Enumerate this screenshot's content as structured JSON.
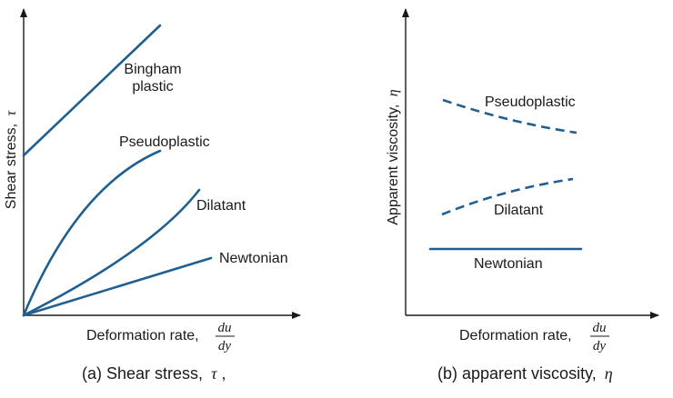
{
  "colors": {
    "curve": "#1f5f92",
    "axis": "#1a1a1a",
    "text": "#1a1a1a"
  },
  "panel_a": {
    "caption_prefix": "(a) Shear stress,",
    "caption_symbol": "τ",
    "caption_suffix": ",",
    "y_axis_label": "Shear stress,",
    "y_axis_symbol": "τ",
    "x_axis_label": "Deformation rate,",
    "x_frac_num": "du",
    "x_frac_den": "dy",
    "curves": {
      "bingham_line1": "Bingham",
      "bingham_line2": "plastic",
      "pseudoplastic": "Pseudoplastic",
      "dilatant": "Dilatant",
      "newtonian": "Newtonian"
    }
  },
  "panel_b": {
    "caption_prefix": "(b) apparent viscosity,",
    "caption_symbol": "η",
    "y_axis_label": "Apparent viscosity,",
    "y_axis_symbol": "η",
    "x_axis_label": "Deformation rate,",
    "x_frac_num": "du",
    "x_frac_den": "dy",
    "curves": {
      "pseudoplastic": "Pseudoplastic",
      "dilatant": "Dilatant",
      "newtonian": "Newtonian"
    }
  }
}
